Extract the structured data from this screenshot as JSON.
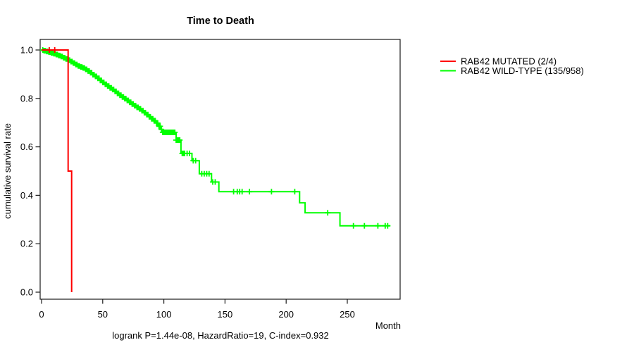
{
  "title": "Time to Death",
  "axes": {
    "x_label": "Month",
    "y_label": "cumulative survival rate",
    "x_ticks": [
      0,
      50,
      100,
      150,
      200,
      250
    ],
    "y_ticks": [
      "1.0",
      "0.8",
      "0.6",
      "0.4",
      "0.2",
      "0.0"
    ]
  },
  "annotation": "logrank P=1.44e-08, HazardRatio=19, C-index=0.932",
  "legend": {
    "items": [
      {
        "label": "RAB42 MUTATED (2/4)",
        "color": "#ff0000"
      },
      {
        "label": "RAB42 WILD-TYPE (135/958)",
        "color": "#00ff00"
      }
    ]
  },
  "chart_data": {
    "type": "line",
    "subtype": "kaplan-meier-step-function",
    "title": "Time to Death",
    "xlabel": "Month",
    "ylabel": "cumulative survival rate",
    "xlim": [
      0,
      293
    ],
    "ylim": [
      0.0,
      1.0
    ],
    "grid": false,
    "legend_position": "right-outside-top",
    "stats_caption": "logrank P=1.44e-08, HazardRatio=19, C-index=0.932",
    "series": [
      {
        "name": "RAB42 WILD-TYPE (135/958)",
        "color": "#00ff00",
        "events_total": "135/958",
        "end_month": 285,
        "steps": [
          [
            0,
            1.0
          ],
          [
            2,
            0.997
          ],
          [
            4,
            0.994
          ],
          [
            6,
            0.991
          ],
          [
            8,
            0.988
          ],
          [
            10,
            0.985
          ],
          [
            12,
            0.981
          ],
          [
            14,
            0.977
          ],
          [
            16,
            0.973
          ],
          [
            18,
            0.968
          ],
          [
            20,
            0.963
          ],
          [
            22,
            0.958
          ],
          [
            24,
            0.952
          ],
          [
            26,
            0.946
          ],
          [
            28,
            0.94
          ],
          [
            30,
            0.934
          ],
          [
            32,
            0.93
          ],
          [
            34,
            0.926
          ],
          [
            36,
            0.92
          ],
          [
            38,
            0.913
          ],
          [
            40,
            0.906
          ],
          [
            42,
            0.898
          ],
          [
            44,
            0.891
          ],
          [
            46,
            0.883
          ],
          [
            48,
            0.874
          ],
          [
            50,
            0.866
          ],
          [
            52,
            0.858
          ],
          [
            54,
            0.851
          ],
          [
            56,
            0.844
          ],
          [
            58,
            0.837
          ],
          [
            60,
            0.829
          ],
          [
            62,
            0.821
          ],
          [
            64,
            0.813
          ],
          [
            66,
            0.806
          ],
          [
            68,
            0.799
          ],
          [
            70,
            0.792
          ],
          [
            72,
            0.784
          ],
          [
            74,
            0.777
          ],
          [
            76,
            0.77
          ],
          [
            78,
            0.763
          ],
          [
            80,
            0.757
          ],
          [
            82,
            0.749
          ],
          [
            84,
            0.741
          ],
          [
            86,
            0.733
          ],
          [
            88,
            0.724
          ],
          [
            90,
            0.716
          ],
          [
            92,
            0.708
          ],
          [
            94,
            0.698
          ],
          [
            96,
            0.685
          ],
          [
            98,
            0.672
          ],
          [
            99,
            0.66
          ],
          [
            110,
            0.628
          ],
          [
            114,
            0.573
          ],
          [
            123,
            0.543
          ],
          [
            129,
            0.489
          ],
          [
            139,
            0.455
          ],
          [
            145,
            0.415
          ],
          [
            211,
            0.369
          ],
          [
            215.5,
            0.328
          ],
          [
            244,
            0.274
          ]
        ],
        "censor_months": [
          1,
          2,
          3,
          4,
          5,
          6,
          7,
          8,
          9,
          10,
          11,
          12,
          13,
          14,
          15,
          16,
          17,
          18,
          19,
          20,
          21,
          22,
          23,
          24,
          25,
          26,
          27,
          28,
          29,
          30,
          31,
          32,
          33,
          34,
          35,
          36,
          37,
          38,
          39,
          40,
          41,
          42,
          43,
          44,
          45,
          46,
          47,
          48,
          49,
          50,
          51,
          52,
          53,
          54,
          55,
          56,
          57,
          58,
          59,
          60,
          61,
          62,
          63,
          64,
          65,
          66,
          67,
          68,
          69,
          70,
          71,
          72,
          73,
          74,
          75,
          76,
          77,
          78,
          79,
          80,
          81,
          82,
          83,
          84,
          85,
          86,
          87,
          88,
          89,
          90,
          91,
          92,
          93,
          94,
          95,
          96,
          97,
          98,
          99,
          100,
          101,
          102,
          103,
          104,
          105,
          106,
          107,
          108,
          109,
          110,
          111,
          112,
          113,
          115,
          116,
          117,
          119,
          121,
          124,
          126,
          131,
          133,
          135,
          137,
          140,
          142,
          157,
          160,
          162,
          164,
          170,
          188,
          207,
          234,
          255,
          264,
          275,
          281,
          283
        ]
      },
      {
        "name": "RAB42 MUTATED (2/4)",
        "color": "#ff0000",
        "events_total": "2/4",
        "end_month": 24.6,
        "steps": [
          [
            0,
            1.0
          ],
          [
            21.7,
            0.5
          ],
          [
            24.6,
            0.0
          ]
        ],
        "censor_months": [
          6.3,
          10.8
        ]
      }
    ]
  }
}
